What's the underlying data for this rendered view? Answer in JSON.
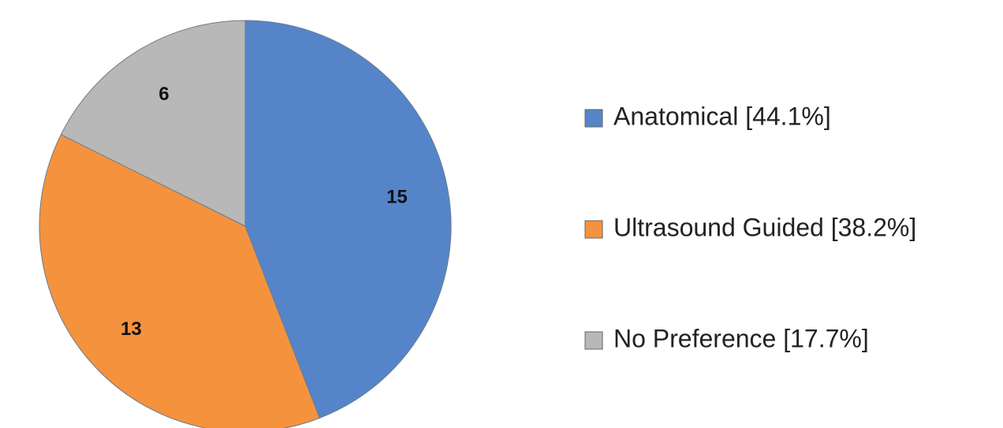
{
  "chart_data": {
    "type": "pie",
    "categories": [
      "Anatomical [44.1%]",
      "Ultrasound Guided [38.2%]",
      "No Preference [17.7%]"
    ],
    "values": [
      15,
      13,
      6
    ],
    "colors": [
      "#5585c8",
      "#f5923e",
      "#b8b8b8"
    ],
    "legend": "right"
  }
}
